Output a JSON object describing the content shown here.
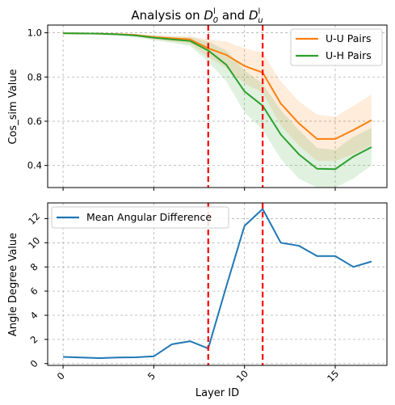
{
  "chart_data": [
    {
      "type": "line",
      "title_text": "Analysis on",
      "title_sym_a": "D",
      "title_sup_a": "l",
      "title_sub_a": "0",
      "title_and": "and",
      "title_sym_b": "D",
      "title_sup_b": "l",
      "title_sub_b": "u",
      "ylabel": "Cos_sim Value",
      "xlabel": "",
      "xlim": [
        -0.85,
        17.85
      ],
      "ylim": [
        0.3,
        1.035
      ],
      "yticks": [
        "0.4",
        "0.6",
        "0.8",
        "1.0"
      ],
      "xticks": [
        0,
        5,
        10,
        15
      ],
      "grid": true,
      "legend_position": "upper right",
      "x": [
        0,
        1,
        2,
        3,
        4,
        5,
        6,
        7,
        8,
        9,
        10,
        11,
        12,
        13,
        14,
        15,
        16,
        17
      ],
      "series": [
        {
          "name": "U-U Pairs",
          "color": "#ff7f0e",
          "values": [
            0.998,
            0.997,
            0.996,
            0.994,
            0.99,
            0.98,
            0.975,
            0.97,
            0.93,
            0.9,
            0.85,
            0.82,
            0.68,
            0.59,
            0.52,
            0.52,
            0.56,
            0.605
          ],
          "band_lower": [
            0.996,
            0.995,
            0.993,
            0.99,
            0.984,
            0.97,
            0.96,
            0.95,
            0.89,
            0.84,
            0.77,
            0.73,
            0.58,
            0.49,
            0.42,
            0.42,
            0.45,
            0.49
          ],
          "band_upper": [
            1.0,
            0.999,
            0.998,
            0.997,
            0.995,
            0.99,
            0.985,
            0.985,
            0.97,
            0.96,
            0.93,
            0.91,
            0.78,
            0.69,
            0.63,
            0.62,
            0.67,
            0.72
          ]
        },
        {
          "name": "U-H Pairs",
          "color": "#2ca02c",
          "values": [
            0.998,
            0.997,
            0.996,
            0.993,
            0.988,
            0.978,
            0.97,
            0.963,
            0.92,
            0.855,
            0.735,
            0.67,
            0.54,
            0.45,
            0.385,
            0.383,
            0.44,
            0.483
          ],
          "band_lower": [
            0.996,
            0.994,
            0.992,
            0.988,
            0.98,
            0.966,
            0.955,
            0.94,
            0.87,
            0.78,
            0.64,
            0.56,
            0.43,
            0.34,
            0.3,
            0.3,
            0.34,
            0.4
          ],
          "band_upper": [
            1.0,
            0.999,
            0.998,
            0.997,
            0.994,
            0.988,
            0.983,
            0.98,
            0.96,
            0.92,
            0.83,
            0.77,
            0.65,
            0.56,
            0.48,
            0.47,
            0.53,
            0.57
          ]
        }
      ],
      "vlines": [
        8,
        11
      ],
      "vline_color": "#ff0000"
    },
    {
      "type": "line",
      "ylabel": "Angle Degree Value",
      "xlabel": "Layer ID",
      "xlim": [
        -0.85,
        17.85
      ],
      "ylim": [
        -0.15,
        13.3
      ],
      "yticks": [
        0,
        2,
        4,
        6,
        8,
        10,
        12
      ],
      "xticks": [
        0,
        5,
        10,
        15
      ],
      "grid": true,
      "legend_position": "upper left",
      "x": [
        0,
        1,
        2,
        3,
        4,
        5,
        6,
        7,
        8,
        9,
        10,
        11,
        12,
        13,
        14,
        15,
        16,
        17
      ],
      "series": [
        {
          "name": "Mean Angular Difference",
          "color": "#1f77b4",
          "values": [
            0.55,
            0.5,
            0.45,
            0.5,
            0.52,
            0.6,
            1.6,
            1.85,
            1.25,
            6.4,
            11.4,
            12.8,
            10.0,
            9.75,
            8.9,
            8.9,
            8.0,
            8.45
          ]
        }
      ],
      "vlines": [
        8,
        11
      ],
      "vline_color": "#ff0000"
    }
  ]
}
